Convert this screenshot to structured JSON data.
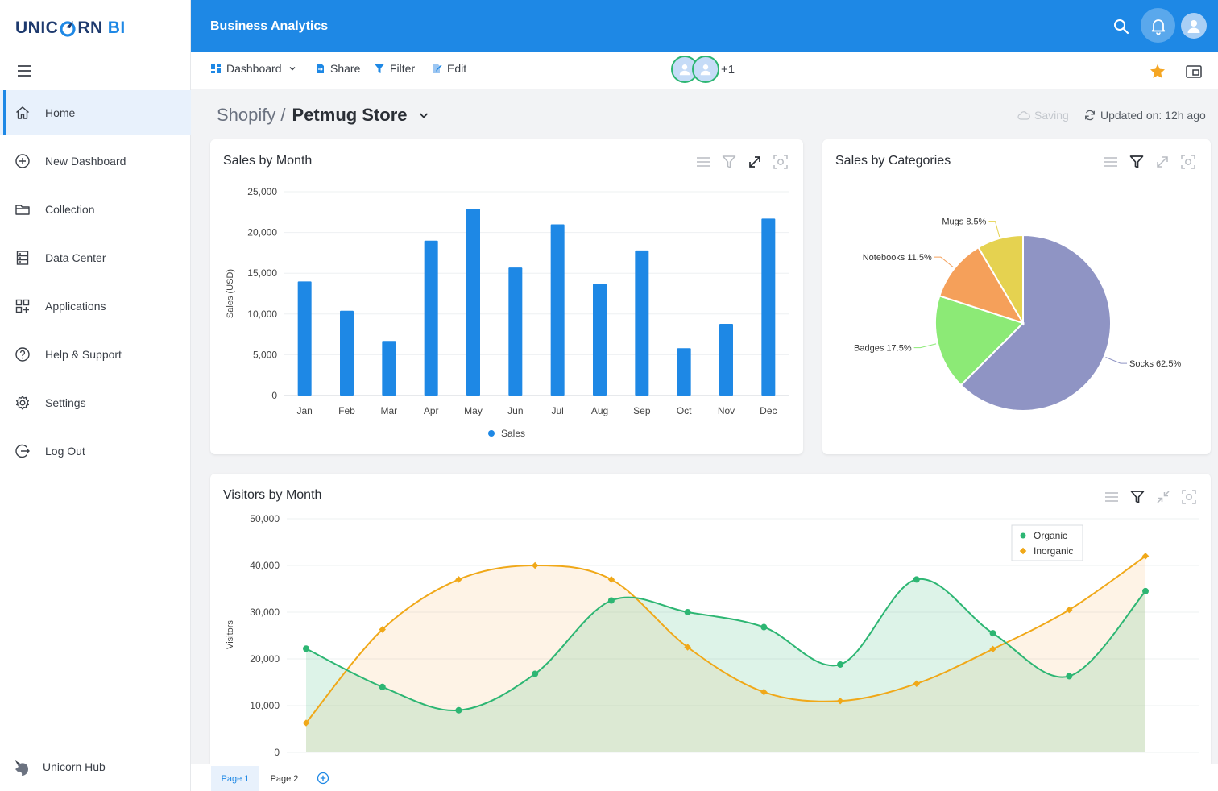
{
  "brand": {
    "logo_left": "UNIC",
    "logo_right": "RN",
    "logo_bi": "BI"
  },
  "sidebar": {
    "items": [
      {
        "label": "Home",
        "icon": "home-icon",
        "active": true
      },
      {
        "label": "New Dashboard",
        "icon": "plus-circle-icon"
      },
      {
        "label": "Collection",
        "icon": "folder-icon"
      },
      {
        "label": "Data Center",
        "icon": "server-icon"
      },
      {
        "label": "Applications",
        "icon": "grid-icon"
      },
      {
        "label": "Help & Support",
        "icon": "help-icon"
      },
      {
        "label": "Settings",
        "icon": "gear-icon"
      },
      {
        "label": "Log Out",
        "icon": "logout-icon"
      }
    ],
    "footer_label": "Unicorn Hub"
  },
  "header": {
    "title": "Business Analytics"
  },
  "toolbar": {
    "dashboard_label": "Dashboard",
    "share_label": "Share",
    "filter_label": "Filter",
    "edit_label": "Edit",
    "collaborators_more": "+1"
  },
  "page": {
    "breadcrumb_parent": "Shopify",
    "breadcrumb_separator": "/",
    "breadcrumb_current": "Petmug Store",
    "saving_label": "Saving",
    "updated_label": "Updated on: 12h ago"
  },
  "colors": {
    "primary": "#1e88e5",
    "organic": "#2db673",
    "inorganic": "#f0a818",
    "star": "#f5a623"
  },
  "cards": {
    "sales_month_title": "Sales by Month",
    "sales_categories_title": "Sales by Categories",
    "visitors_title": "Visitors by Month"
  },
  "chart_data": [
    {
      "type": "bar",
      "title": "Sales by Month",
      "ylabel": "Sales (USD)",
      "xlabel": "",
      "categories": [
        "Jan",
        "Feb",
        "Mar",
        "Apr",
        "May",
        "Jun",
        "Jul",
        "Aug",
        "Sep",
        "Oct",
        "Nov",
        "Dec"
      ],
      "series": [
        {
          "name": "Sales",
          "values": [
            14000,
            10400,
            6700,
            19000,
            22900,
            15700,
            21000,
            13700,
            17800,
            5800,
            8800,
            21700
          ]
        }
      ],
      "ylim": [
        0,
        25000
      ],
      "yticks": [
        "0",
        "5,000",
        "10,000",
        "15,000",
        "20,000",
        "25,000"
      ],
      "grid": true,
      "legend": "bottom"
    },
    {
      "type": "pie",
      "title": "Sales by Categories",
      "slices": [
        {
          "label": "Socks",
          "value": 62.5,
          "display": "Socks 62.5%",
          "color": "#8f94c4"
        },
        {
          "label": "Badges",
          "value": 17.5,
          "display": "Badges 17.5%",
          "color": "#8cea76"
        },
        {
          "label": "Notebooks",
          "value": 11.5,
          "display": "Notebooks 11.5%",
          "color": "#f5a05a"
        },
        {
          "label": "Mugs",
          "value": 8.5,
          "display": "Mugs 8.5%",
          "color": "#e5d250"
        }
      ]
    },
    {
      "type": "area",
      "title": "Visitors by Month",
      "ylabel": "Visitors",
      "ylim": [
        0,
        50000
      ],
      "yticks": [
        "0",
        "10,000",
        "20,000",
        "30,000",
        "40,000",
        "50,000"
      ],
      "x": [
        1,
        2,
        3,
        4,
        5,
        6,
        7,
        8,
        9,
        10,
        11,
        12
      ],
      "series": [
        {
          "name": "Organic",
          "color": "#2db673",
          "values": [
            22200,
            14000,
            9000,
            16800,
            32500,
            30000,
            26800,
            18800,
            37000,
            25500,
            16300,
            34500
          ]
        },
        {
          "name": "Inorganic",
          "color": "#f0a818",
          "values": [
            6300,
            26300,
            37000,
            40000,
            37000,
            22500,
            12900,
            11000,
            14700,
            22100,
            30500,
            42000
          ]
        }
      ],
      "grid": true,
      "legend": "top-right"
    }
  ],
  "pages": {
    "tabs": [
      "Page 1",
      "Page 2"
    ]
  }
}
